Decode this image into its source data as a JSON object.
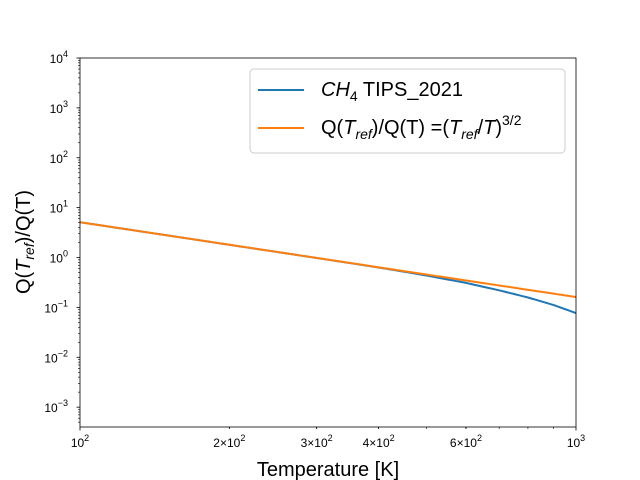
{
  "chart_data": {
    "type": "line",
    "title": "",
    "xlabel": "Temperature [K]",
    "ylabel": {
      "prefix": "Q(",
      "var": "T",
      "sub": "ref",
      "suffix": ")/Q(T)"
    },
    "xscale": "log",
    "yscale": "log",
    "xlim": [
      100,
      1000
    ],
    "ylim": [
      0.0004,
      10000
    ],
    "x_ticks": [
      {
        "value": 100,
        "mantissa": "",
        "base": "10",
        "exp": "2"
      },
      {
        "value": 200,
        "mantissa": "2×",
        "base": "10",
        "exp": "2"
      },
      {
        "value": 300,
        "mantissa": "3×",
        "base": "10",
        "exp": "2"
      },
      {
        "value": 400,
        "mantissa": "4×",
        "base": "10",
        "exp": "2"
      },
      {
        "value": 600,
        "mantissa": "6×",
        "base": "10",
        "exp": "2"
      },
      {
        "value": 1000,
        "mantissa": "",
        "base": "10",
        "exp": "3"
      }
    ],
    "y_ticks": [
      {
        "value": 0.001,
        "base": "10",
        "exp": "−3"
      },
      {
        "value": 0.01,
        "base": "10",
        "exp": "−2"
      },
      {
        "value": 0.1,
        "base": "10",
        "exp": "−1"
      },
      {
        "value": 1,
        "base": "10",
        "exp": "0"
      },
      {
        "value": 10,
        "base": "10",
        "exp": "1"
      },
      {
        "value": 100,
        "base": "10",
        "exp": "2"
      },
      {
        "value": 1000,
        "base": "10",
        "exp": "3"
      },
      {
        "value": 10000,
        "base": "10",
        "exp": "4"
      }
    ],
    "legend_position": "top-right",
    "series": [
      {
        "name": "CH4 TIPS_2021",
        "legend": {
          "var": "CH",
          "sub": "4",
          "rest": " TIPS_2021"
        },
        "color": "#1f77b4",
        "x": [
          100,
          150,
          200,
          250,
          296,
          350,
          400,
          450,
          500,
          600,
          700,
          800,
          900,
          1000
        ],
        "y": [
          5.1,
          2.78,
          1.8,
          1.29,
          1.0,
          0.775,
          0.63,
          0.52,
          0.435,
          0.31,
          0.22,
          0.158,
          0.112,
          0.077
        ]
      },
      {
        "name": "Q(Tref)/Q(T) =(Tref/T)^3/2",
        "legend": {
          "p1": "Q(",
          "var1": "T",
          "sub1": "ref",
          "p2": ")/Q(T) =(",
          "var2": "T",
          "sub2": "ref",
          "p3": "/",
          "var3": "T",
          "p4": ")",
          "sup": "3/2"
        },
        "color": "#ff7f0e",
        "x": [
          100,
          150,
          200,
          250,
          296,
          350,
          400,
          450,
          500,
          600,
          700,
          800,
          900,
          1000
        ],
        "y": [
          5.093,
          2.772,
          1.801,
          1.288,
          1.0,
          0.778,
          0.636,
          0.533,
          0.455,
          0.346,
          0.275,
          0.225,
          0.189,
          0.161
        ]
      }
    ]
  }
}
